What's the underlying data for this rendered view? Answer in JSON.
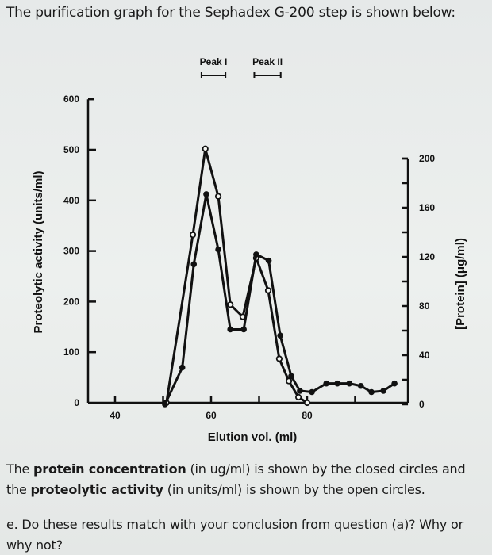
{
  "header": {
    "title": "The purification graph for the Sephadex G-200 step is shown below:"
  },
  "footer": {
    "line1_pre": "The ",
    "line1_bold1": "protein concentration",
    "line1_mid": " (in ug/ml) is shown by the closed circles and",
    "line2_pre": "the ",
    "line2_bold": "proteolytic activity",
    "line2_post": " (in units/ml) is shown by the open circles.",
    "question_line1": "e. Do these results match with your conclusion from question (a)? Why or",
    "question_line2": "why not?"
  },
  "chart_data": {
    "type": "line",
    "xlabel": "Elution vol. (ml)",
    "ylabel_left": "Proteolytic activity (units/ml)",
    "ylabel_right": "[Protein] (μg/ml)",
    "x_ticks": [
      40,
      60,
      80
    ],
    "xlim": [
      40,
      101
    ],
    "ylim_left": [
      0,
      600
    ],
    "left_ticks": [
      0,
      100,
      200,
      300,
      400,
      500,
      600
    ],
    "ylim_right": [
      0,
      200
    ],
    "right_ticks": [
      0,
      40,
      80,
      120,
      160,
      200
    ],
    "annotations": [
      {
        "label": "Peak I",
        "range": [
          58,
          63
        ]
      },
      {
        "label": "Peak II",
        "range": [
          69,
          74.5
        ]
      }
    ],
    "grid": false,
    "series": [
      {
        "marker": "open-circle",
        "axis": "left",
        "color": "#111111",
        "x": [
          50.7,
          56.2,
          58.8,
          61.5,
          64,
          66.6,
          69.4,
          71.9,
          74.2,
          76.2,
          78.2,
          80
        ],
        "y": [
          0,
          332,
          502,
          408,
          194,
          170,
          286,
          222,
          87,
          43,
          11,
          0
        ]
      },
      {
        "marker": "closed-circle",
        "axis": "right",
        "color": "#111111",
        "x": [
          50.4,
          54,
          56.4,
          59,
          61.5,
          64,
          66.8,
          69.4,
          72,
          74.4,
          76.7,
          78.5,
          81,
          84,
          86.3,
          88.8,
          91.2,
          93.4,
          95.9,
          98.2
        ],
        "y": [
          0,
          30,
          114,
          171,
          126,
          61,
          61,
          122,
          117,
          56,
          23,
          11,
          10,
          17,
          17,
          17,
          15,
          10,
          11,
          17
        ]
      }
    ]
  }
}
